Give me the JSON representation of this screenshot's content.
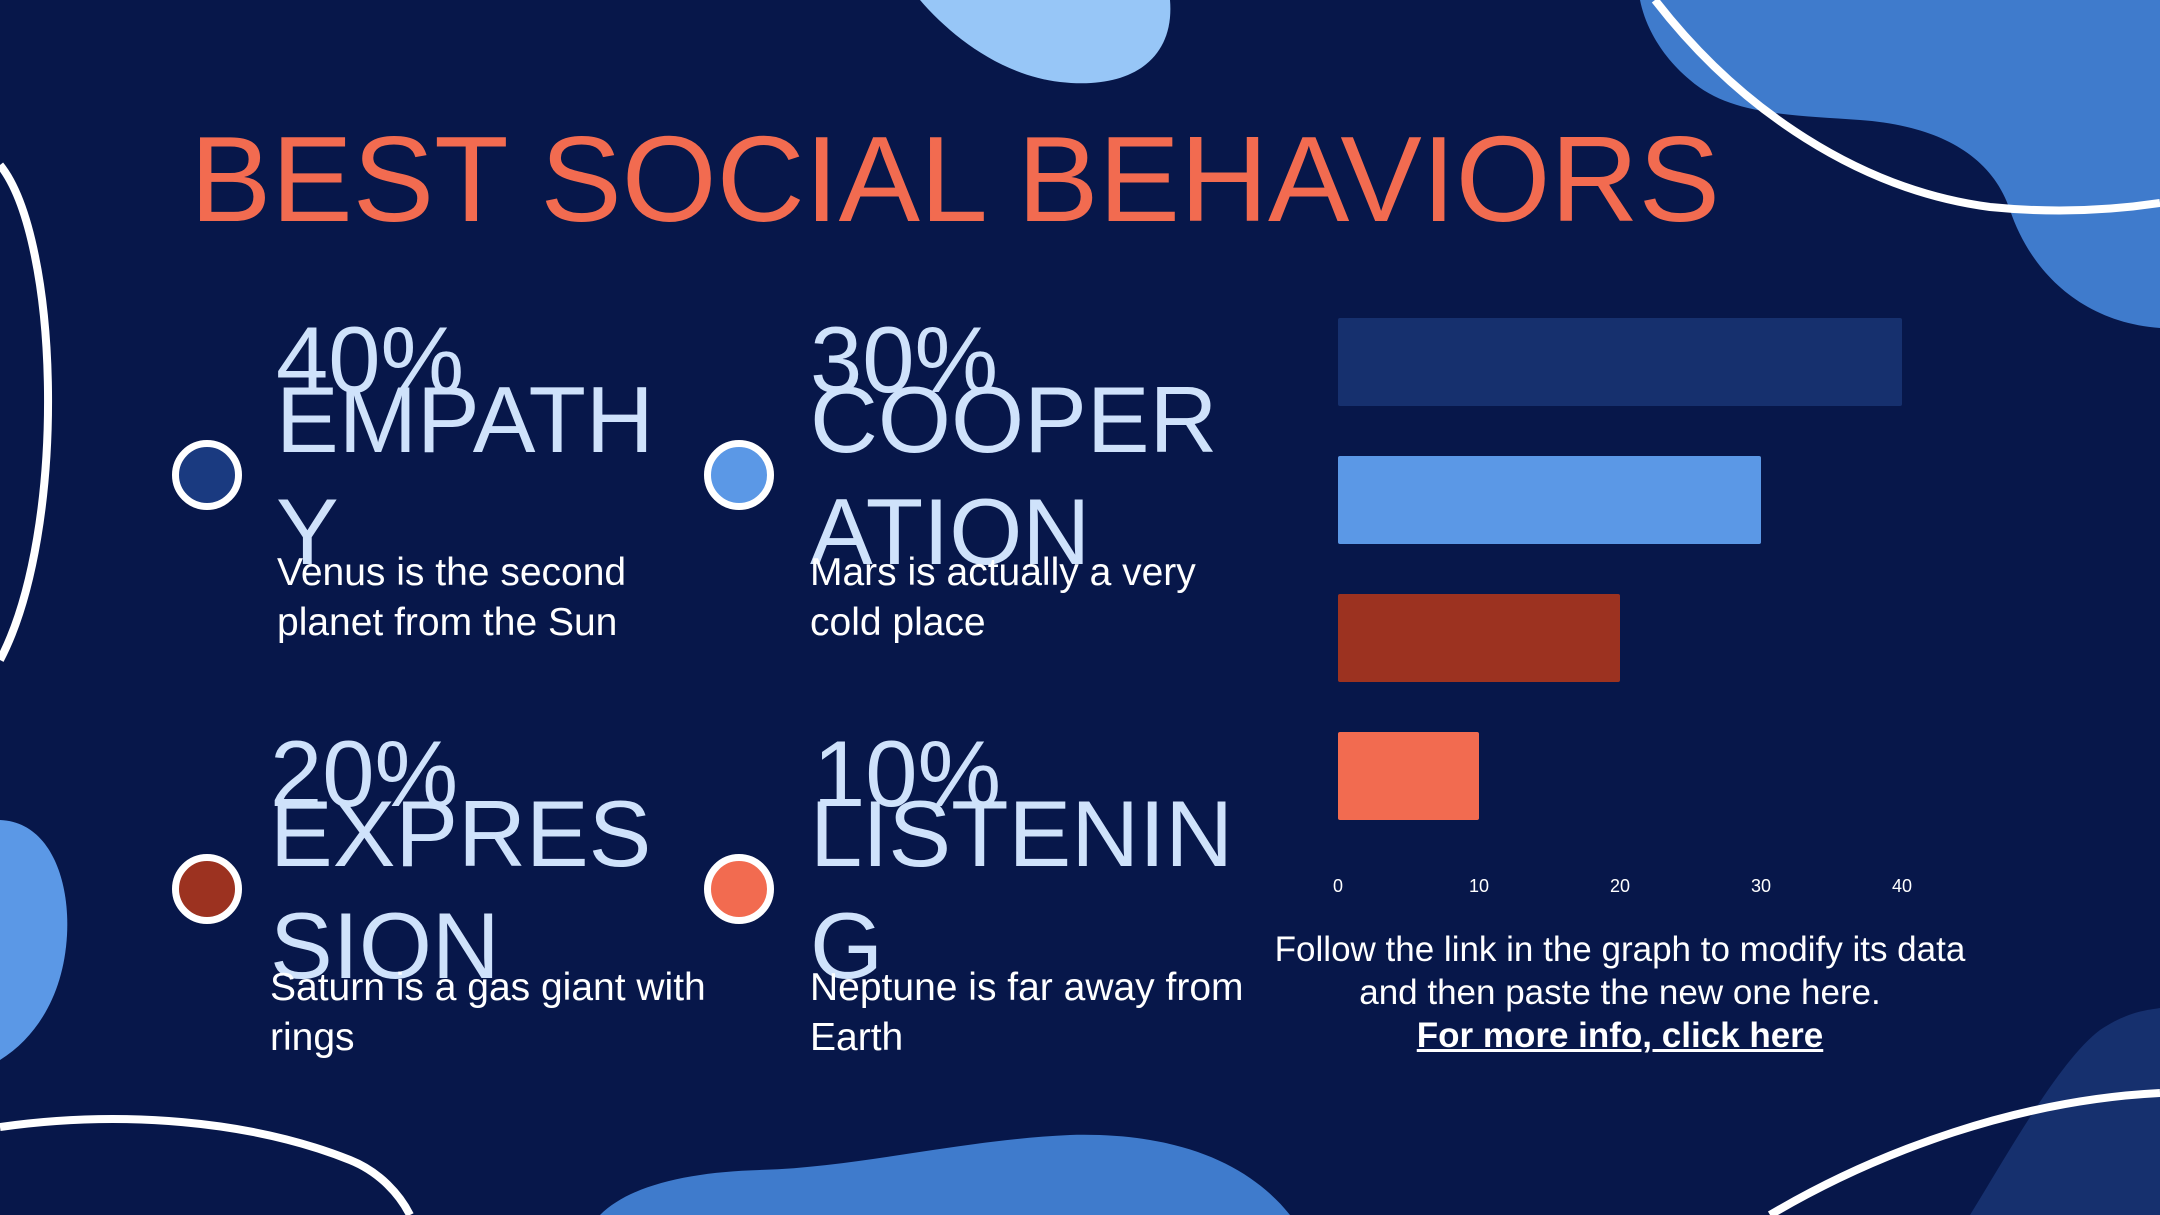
{
  "slide": {
    "title": "BEST SOCIAL BEHAVIORS"
  },
  "items": [
    {
      "percent": "40%",
      "label": "EMPATHY",
      "description": "Venus is the second planet from the Sun",
      "color": "#1a3a80"
    },
    {
      "percent": "30%",
      "label": "COOPERATION",
      "description": "Mars is actually a very cold place",
      "color": "#5b98e6"
    },
    {
      "percent": "20%",
      "label": "EXPRESSION",
      "description": "Saturn is a gas giant with rings",
      "color": "#9c3220"
    },
    {
      "percent": "10%",
      "label": "LISTENING",
      "description": "Neptune is far away from Earth",
      "color": "#f26b50"
    }
  ],
  "chart_data": {
    "type": "bar",
    "orientation": "horizontal",
    "categories": [
      "EMPATHY",
      "COOPERATION",
      "EXPRESSION",
      "LISTENING"
    ],
    "values": [
      40,
      30,
      20,
      10
    ],
    "colors": [
      "#16306e",
      "#5b98e6",
      "#9c3220",
      "#f26b50"
    ],
    "xlim": [
      0,
      40
    ],
    "xticks": [
      0,
      10,
      20,
      30,
      40
    ],
    "grid": false,
    "legend": "none"
  },
  "note": {
    "text": "Follow the link in the graph to modify its data and then paste the new one here.",
    "link": "For more info, click here"
  },
  "colors": {
    "background": "#07174a",
    "title": "#f26b50",
    "label": "#cfe2fb",
    "accent_blue": "#3f7bcc",
    "light_blue": "#97c6f7"
  }
}
